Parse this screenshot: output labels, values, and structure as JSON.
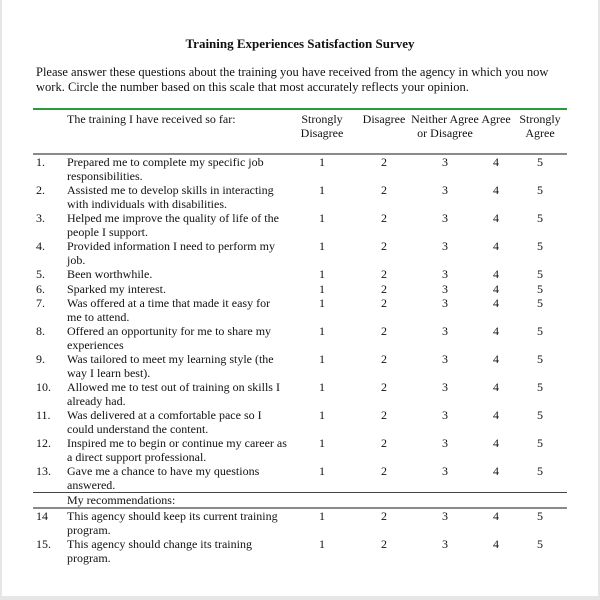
{
  "title": "Training Experiences Satisfaction Survey",
  "intro": "Please answer these questions about the training you have received from the agency in which you now work.  Circle the number based on this scale that most accurately reflects your opinion.",
  "header": {
    "prompt": "The training I have received so far:",
    "scale": [
      "Strongly Disagree",
      "Disagree",
      "Neither Agree or Disagree",
      "Agree",
      "Strongly Agree"
    ]
  },
  "colors": {
    "header_rule": "#2e9b3a",
    "rule": "#8a8a8a"
  },
  "scale_values": [
    "1",
    "2",
    "3",
    "4",
    "5"
  ],
  "items": [
    {
      "num": "1.",
      "text": "Prepared me to complete my specific job responsibilities."
    },
    {
      "num": "2.",
      "text": "Assisted me to develop skills in interacting with individuals with disabilities."
    },
    {
      "num": "3.",
      "text": "Helped me improve the quality of life of the people I support."
    },
    {
      "num": "4.",
      "text": "Provided information I need to perform my job."
    },
    {
      "num": "5.",
      "text": "Been worthwhile."
    },
    {
      "num": "6.",
      "text": "Sparked my interest."
    },
    {
      "num": "7.",
      "text": "Was offered at a time that made it easy for me to attend."
    },
    {
      "num": "8.",
      "text": "Offered an opportunity for me to share my experiences"
    },
    {
      "num": "9.",
      "text": "Was tailored to meet my learning style (the way I learn best)."
    },
    {
      "num": "10.",
      "text": "Allowed me to test out of training on skills I already had."
    },
    {
      "num": "11.",
      "text": "Was delivered at a comfortable pace so I could understand the content."
    },
    {
      "num": "12.",
      "text": "Inspired me to begin or continue my career as a direct support professional."
    },
    {
      "num": "13.",
      "text": "Gave me a chance to have my questions answered."
    }
  ],
  "recommendations_label": "My recommendations:",
  "recommendations": [
    {
      "num": "14",
      "text": "This agency should keep its current training program."
    },
    {
      "num": "15.",
      "text": "This agency should change its training program."
    }
  ]
}
